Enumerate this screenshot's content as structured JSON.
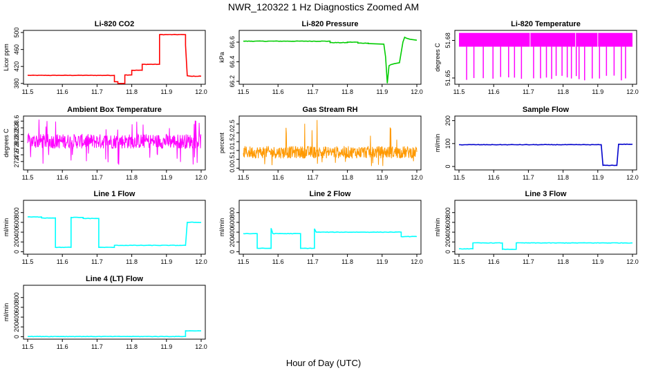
{
  "figure": {
    "title": "NWR_120322  1 Hz Diagnostics Zoomed AM",
    "xlabel": "Hour of Day (UTC)"
  },
  "chart_data": [
    {
      "type": "line",
      "title": "Li-820 CO2",
      "ylabel": "Licor ppm",
      "color": "#ff0000",
      "xlim": [
        11.5,
        12.0
      ],
      "ylim": [
        378,
        505
      ],
      "xticks": [
        "11.5",
        "11.6",
        "11.7",
        "11.8",
        "11.9",
        "12.0"
      ],
      "yticks": [
        "380",
        "420",
        "460",
        "500"
      ],
      "series": [
        {
          "x": [
            11.5,
            11.75,
            11.75,
            11.76,
            11.76,
            11.78,
            11.78,
            11.8,
            11.8,
            11.83,
            11.83,
            11.88,
            11.88,
            11.955,
            11.955,
            11.96,
            11.97,
            12.0
          ],
          "y": [
            399,
            399,
            384,
            384,
            380,
            380,
            400,
            400,
            411,
            411,
            425,
            425,
            495,
            495,
            470,
            398,
            397,
            397
          ]
        }
      ]
    },
    {
      "type": "line",
      "title": "Li-820 Pressure",
      "ylabel": "kPa",
      "color": "#00cc00",
      "xlim": [
        11.5,
        12.0
      ],
      "ylim": [
        66.17,
        66.72
      ],
      "xticks": [
        "11.5",
        "11.6",
        "11.7",
        "11.8",
        "11.9",
        "12.0"
      ],
      "yticks": [
        "66.2",
        "66.4",
        "66.6"
      ],
      "series": [
        {
          "x": [
            11.5,
            11.75,
            11.75,
            11.8,
            11.8,
            11.83,
            11.83,
            11.86,
            11.86,
            11.905,
            11.91,
            11.915,
            11.92,
            11.925,
            11.935,
            11.95,
            11.96,
            11.965,
            11.97,
            11.98,
            12.0
          ],
          "y": [
            66.61,
            66.61,
            66.595,
            66.595,
            66.6,
            66.6,
            66.59,
            66.59,
            66.585,
            66.58,
            66.45,
            66.18,
            66.36,
            66.37,
            66.38,
            66.39,
            66.6,
            66.65,
            66.64,
            66.63,
            66.62
          ]
        }
      ]
    },
    {
      "type": "line",
      "title": "Li-820 Temperature",
      "ylabel": "degrees C",
      "color": "#ff00ff",
      "xlim": [
        11.5,
        12.0
      ],
      "ylim": [
        51.645,
        51.688
      ],
      "xticks": [
        "11.5",
        "11.6",
        "11.7",
        "11.8",
        "11.9",
        "12.0"
      ],
      "yticks": [
        "51.65",
        "51.68"
      ],
      "band": {
        "low": 51.675,
        "high": 51.686
      },
      "dips": [
        11.522,
        11.543,
        11.57,
        11.598,
        11.62,
        11.643,
        11.66,
        11.68,
        11.715,
        11.735,
        11.752,
        11.767,
        11.78,
        11.797,
        11.812,
        11.824,
        11.838,
        11.846,
        11.862,
        11.884,
        11.905,
        11.925,
        11.947,
        11.968,
        11.98
      ],
      "dip_min": 51.648
    },
    {
      "type": "line",
      "title": "Ambient Box Temperature",
      "ylabel": "degrees C",
      "color": "#ff00ff",
      "xlim": [
        11.5,
        12.0
      ],
      "ylim": [
        27.15,
        28.75
      ],
      "xticks": [
        "11.5",
        "11.6",
        "11.7",
        "11.8",
        "11.9",
        "12.0"
      ],
      "yticks": [
        "27.4",
        "27.6",
        "27.8",
        "28.0",
        "28.2",
        "28.4",
        "28.6"
      ],
      "noise": {
        "center": 28.0,
        "spread": 0.22,
        "spike_min": 27.3,
        "spike_max": 28.65
      }
    },
    {
      "type": "line",
      "title": "Gas Stream RH",
      "ylabel": "percent",
      "color": "#ff9900",
      "xlim": [
        11.5,
        12.0
      ],
      "ylim": [
        -0.1,
        2.95
      ],
      "xticks": [
        "11.5",
        "11.6",
        "11.7",
        "11.8",
        "11.9",
        "12.0"
      ],
      "yticks": [
        "0.0",
        "0.5",
        "1.0",
        "1.5",
        "2.0",
        "2.5"
      ],
      "noise": {
        "center": 0.9,
        "spread": 0.35,
        "spike_min": 0.1,
        "spike_max": 2.75
      }
    },
    {
      "type": "line",
      "title": "Sample Flow",
      "ylabel": "ml/min",
      "color": "#0000cc",
      "xlim": [
        11.5,
        12.0
      ],
      "ylim": [
        -15,
        220
      ],
      "xticks": [
        "11.5",
        "11.6",
        "11.7",
        "11.8",
        "11.9",
        "12.0"
      ],
      "yticks": [
        "0",
        "100",
        "200"
      ],
      "series": [
        {
          "x": [
            11.5,
            11.91,
            11.915,
            11.955,
            11.96,
            12.0
          ],
          "y": [
            95,
            95,
            5,
            5,
            97,
            97
          ]
        }
      ]
    },
    {
      "type": "line",
      "title": "Line 1 Flow",
      "ylabel": "ml/min",
      "color": "#00ffff",
      "xlim": [
        11.5,
        12.0
      ],
      "ylim": [
        -50,
        1050
      ],
      "xticks": [
        "11.5",
        "11.6",
        "11.7",
        "11.8",
        "11.9",
        "12.0"
      ],
      "yticks": [
        "0",
        "200",
        "400",
        "600",
        "800"
      ],
      "series": [
        {
          "x": [
            11.5,
            11.54,
            11.54,
            11.58,
            11.58,
            11.625,
            11.625,
            11.66,
            11.66,
            11.705,
            11.705,
            11.75,
            11.75,
            11.955,
            11.96,
            12.0
          ],
          "y": [
            710,
            710,
            690,
            690,
            90,
            90,
            700,
            700,
            680,
            680,
            90,
            90,
            130,
            130,
            600,
            600
          ]
        }
      ]
    },
    {
      "type": "line",
      "title": "Line 2 Flow",
      "ylabel": "ml/min",
      "color": "#00ffff",
      "xlim": [
        11.5,
        12.0
      ],
      "ylim": [
        -50,
        1050
      ],
      "xticks": [
        "11.5",
        "11.6",
        "11.7",
        "11.8",
        "11.9",
        "12.0"
      ],
      "yticks": [
        "0",
        "200",
        "400",
        "600",
        "800"
      ],
      "series": [
        {
          "x": [
            11.5,
            11.54,
            11.54,
            11.58,
            11.58,
            11.585,
            11.665,
            11.665,
            11.705,
            11.705,
            11.71,
            11.955,
            11.955,
            12.0
          ],
          "y": [
            370,
            370,
            70,
            70,
            480,
            370,
            370,
            70,
            70,
            470,
            400,
            400,
            310,
            310
          ]
        }
      ]
    },
    {
      "type": "line",
      "title": "Line 3 Flow",
      "ylabel": "ml/min",
      "color": "#00ffff",
      "xlim": [
        11.5,
        12.0
      ],
      "ylim": [
        -50,
        1050
      ],
      "xticks": [
        "11.5",
        "11.6",
        "11.7",
        "11.8",
        "11.9",
        "12.0"
      ],
      "yticks": [
        "0",
        "200",
        "400",
        "600",
        "800"
      ],
      "series": [
        {
          "x": [
            11.5,
            11.54,
            11.54,
            11.625,
            11.625,
            11.665,
            11.665,
            12.0
          ],
          "y": [
            60,
            60,
            180,
            180,
            50,
            50,
            180,
            180
          ]
        }
      ]
    },
    {
      "type": "line",
      "title": "Line 4 (LT) Flow",
      "ylabel": "ml/min",
      "color": "#00ffff",
      "xlim": [
        11.5,
        12.0
      ],
      "ylim": [
        -50,
        1050
      ],
      "xticks": [
        "11.5",
        "11.6",
        "11.7",
        "11.8",
        "11.9",
        "12.0"
      ],
      "yticks": [
        "0",
        "200",
        "400",
        "600",
        "800"
      ],
      "series": [
        {
          "x": [
            11.5,
            11.955,
            11.955,
            12.0
          ],
          "y": [
            5,
            5,
            120,
            120
          ]
        }
      ]
    }
  ]
}
